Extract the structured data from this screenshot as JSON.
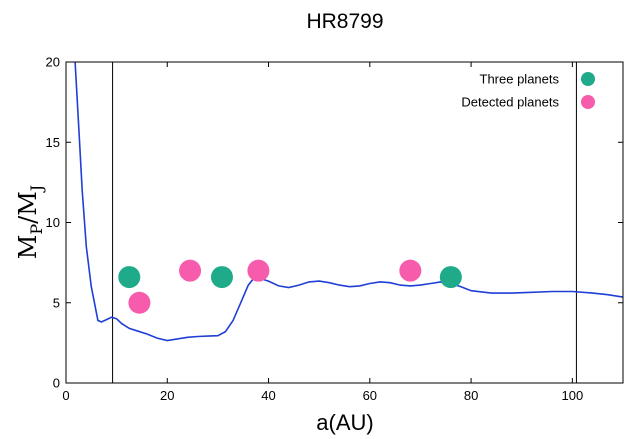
{
  "chart_data": {
    "type": "scatter",
    "title": "HR8799",
    "xlabel": "a(AU)",
    "ylabel": {
      "main": "M",
      "sub1": "P",
      "sep": "/M",
      "sub2": "J"
    },
    "xlim": [
      0,
      110
    ],
    "ylim": [
      0,
      20
    ],
    "xticks": [
      0,
      20,
      40,
      60,
      80,
      100
    ],
    "yticks": [
      0,
      5,
      10,
      15,
      20
    ],
    "grid": false,
    "legend_position": "top-right",
    "vertical_lines": [
      9.2,
      100.8
    ],
    "curve": {
      "color": "#1f3fd6",
      "x": [
        1.8,
        2.5,
        3.2,
        4.0,
        5.0,
        6.3,
        7.0,
        8.0,
        9.0,
        10.0,
        11.0,
        12.5,
        14.0,
        16.0,
        18.0,
        20.0,
        22.0,
        24.0,
        26.0,
        28.0,
        30.0,
        31.5,
        33.0,
        34.5,
        36.0,
        37.0,
        38.0,
        40.0,
        42.0,
        44.0,
        46.0,
        48.0,
        50.0,
        52.0,
        54.0,
        56.0,
        58.0,
        60.0,
        62.0,
        64.0,
        66.0,
        68.0,
        70.0,
        72.0,
        74.0,
        76.0,
        78.0,
        80.0,
        84.0,
        88.0,
        92.0,
        96.0,
        100.0,
        104.0,
        107.0,
        110.0
      ],
      "y": [
        20.0,
        16.0,
        12.0,
        8.5,
        6.0,
        3.9,
        3.8,
        3.95,
        4.1,
        4.0,
        3.7,
        3.4,
        3.25,
        3.05,
        2.8,
        2.65,
        2.75,
        2.85,
        2.9,
        2.92,
        2.95,
        3.2,
        3.9,
        5.0,
        6.1,
        6.5,
        6.55,
        6.35,
        6.05,
        5.95,
        6.1,
        6.3,
        6.35,
        6.25,
        6.1,
        6.0,
        6.05,
        6.2,
        6.3,
        6.25,
        6.1,
        6.05,
        6.1,
        6.2,
        6.3,
        6.2,
        6.0,
        5.75,
        5.6,
        5.6,
        5.65,
        5.7,
        5.7,
        5.6,
        5.5,
        5.35
      ]
    },
    "series": [
      {
        "name": "Three planets",
        "color": "#1fab89",
        "points": [
          [
            12.5,
            6.6
          ],
          [
            30.8,
            6.6
          ],
          [
            76.0,
            6.6
          ]
        ]
      },
      {
        "name": "Detected planets",
        "color": "#f75bab",
        "points": [
          [
            14.5,
            5.0
          ],
          [
            24.5,
            7.0
          ],
          [
            38.0,
            7.0
          ],
          [
            68.0,
            7.0
          ]
        ]
      }
    ]
  }
}
